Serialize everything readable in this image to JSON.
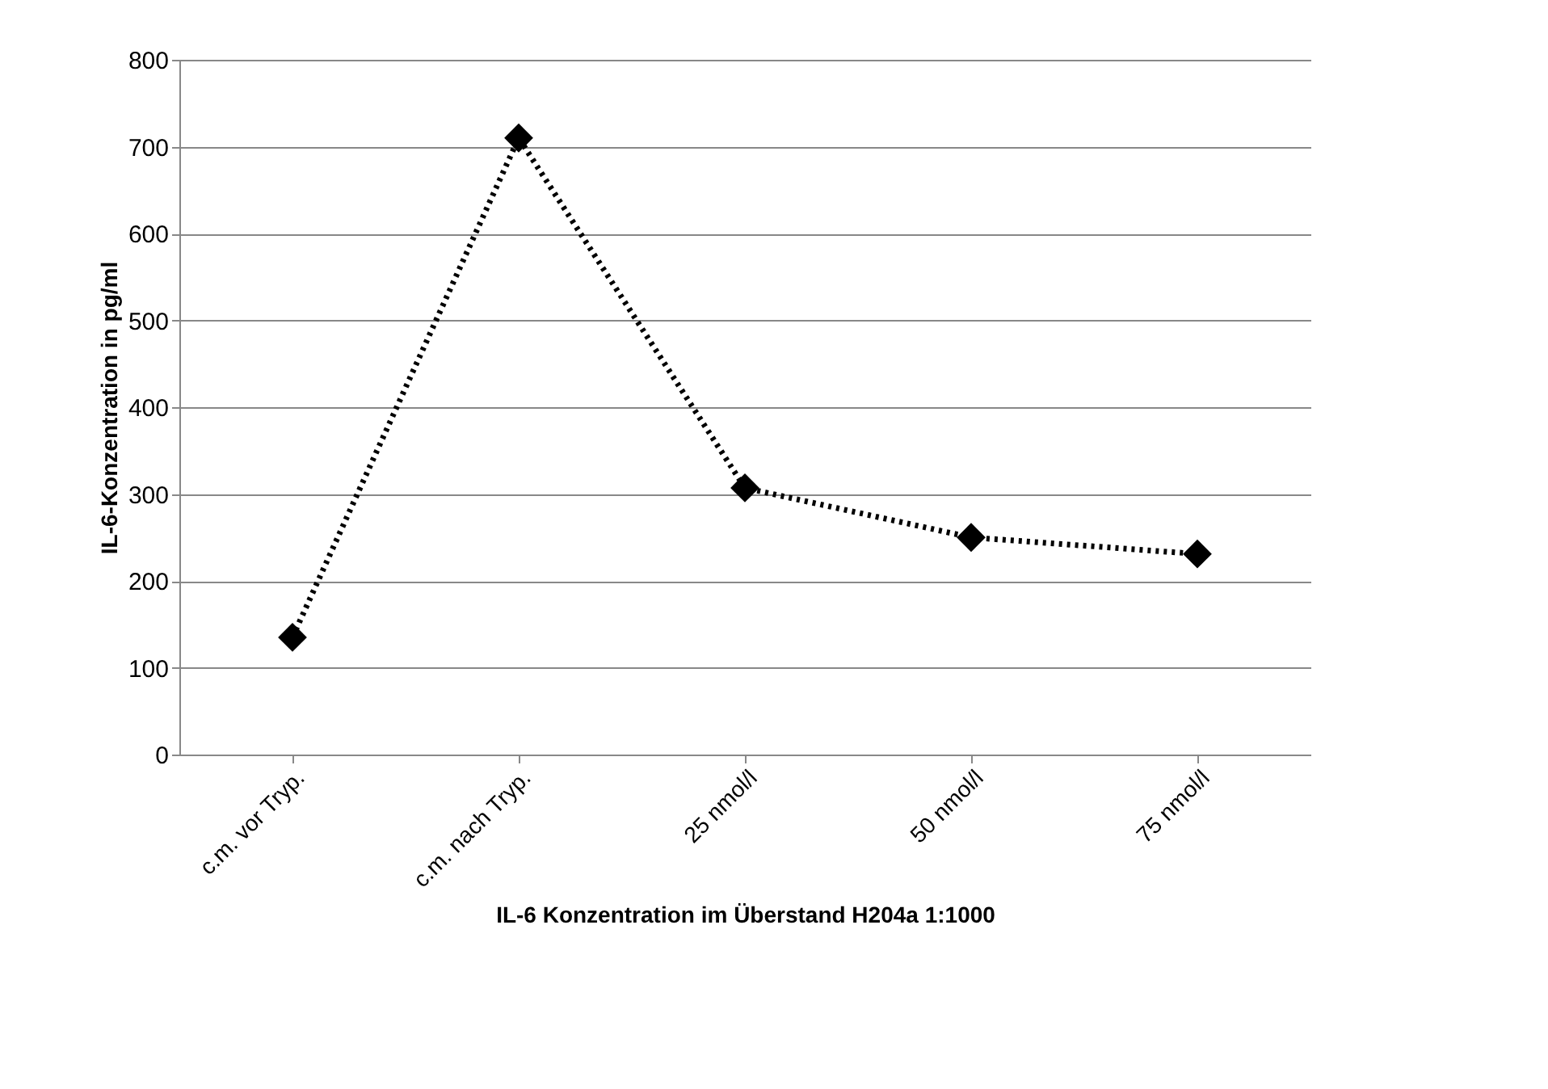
{
  "chart_data": {
    "type": "line",
    "xlabel": "IL-6 Konzentration im Überstand H204a 1:1000",
    "ylabel": "IL-6-Konzentration in pg/ml",
    "categories": [
      "c.m. vor Tryp.",
      "c.m. nach Tryp.",
      "25 nmol/l",
      "50 nmol/l",
      "75 nmol/l"
    ],
    "series": [
      {
        "color": "#000000",
        "values": [
          135,
          710,
          307,
          250,
          231
        ]
      }
    ],
    "ylim": [
      0,
      800
    ],
    "yticks": [
      0,
      100,
      200,
      300,
      400,
      500,
      600,
      700,
      800
    ],
    "grid": "y",
    "marker": "diamond",
    "line_style": "dotted"
  }
}
